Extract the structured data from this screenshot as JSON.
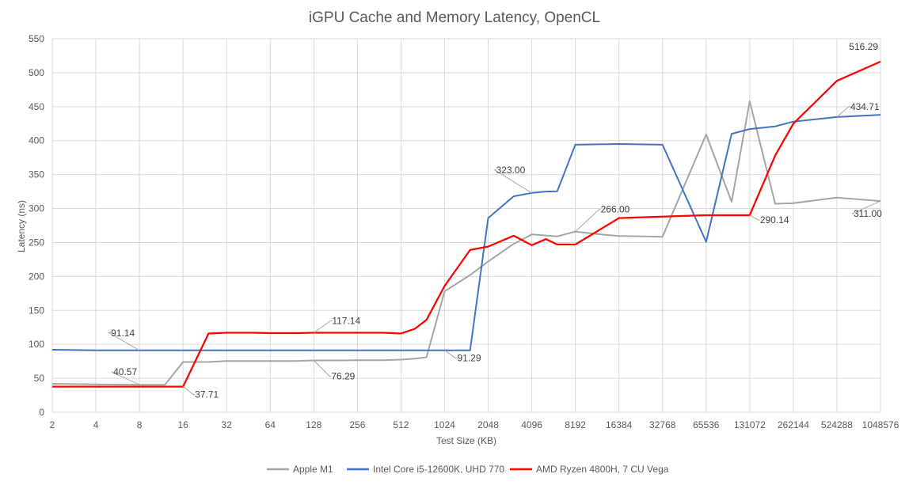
{
  "chart_data": {
    "type": "line",
    "title": "iGPU Cache and Memory Latency, OpenCL",
    "xlabel": "Test Size (KB)",
    "ylabel": "Latency (ns)",
    "ylim": [
      0,
      550
    ],
    "yticks": [
      0,
      50,
      100,
      150,
      200,
      250,
      300,
      350,
      400,
      450,
      500,
      550
    ],
    "x_scale": "log2",
    "xlim": [
      2,
      1048576
    ],
    "xticks": [
      2,
      4,
      8,
      16,
      32,
      64,
      128,
      256,
      512,
      1024,
      2048,
      4096,
      8192,
      16384,
      32768,
      65536,
      131072,
      262144,
      524288,
      1048576
    ],
    "grid": true,
    "legend": "bottom",
    "series": [
      {
        "name": "Apple M1",
        "color": "#a5a5a5",
        "x": [
          2,
          4,
          8,
          12,
          16,
          24,
          32,
          48,
          64,
          96,
          128,
          192,
          256,
          384,
          512,
          640,
          768,
          1024,
          1536,
          2048,
          3072,
          4096,
          6144,
          8192,
          12288,
          16384,
          24576,
          32768,
          65536,
          98304,
          131072,
          196608,
          262144,
          524288,
          1048576
        ],
        "values": [
          42,
          41,
          40.57,
          40.57,
          74,
          74,
          75.5,
          75.5,
          75.5,
          75.5,
          76.29,
          76.29,
          76.5,
          76.5,
          77.5,
          79,
          81,
          178,
          202,
          222,
          248,
          262,
          259,
          266,
          262,
          259.5,
          259,
          258.5,
          409,
          310,
          458,
          307,
          308,
          316,
          311
        ]
      },
      {
        "name": "Intel Core i5-12600K, UHD 770",
        "color": "#4472c4",
        "x": [
          2,
          4,
          8,
          16,
          32,
          64,
          128,
          256,
          512,
          1024,
          1536,
          2048,
          3072,
          4096,
          5120,
          6144,
          8192,
          16384,
          32768,
          65536,
          98304,
          131072,
          196608,
          262144,
          524288,
          1048576
        ],
        "values": [
          92,
          91.14,
          91.14,
          91.14,
          91.14,
          91.14,
          91.14,
          91.14,
          91.14,
          91.29,
          91.29,
          286,
          318,
          323,
          325,
          325.5,
          394,
          395,
          394,
          251,
          410,
          417,
          421,
          428,
          434.71,
          438
        ]
      },
      {
        "name": "AMD Ryzen 4800H, 7 CU Vega",
        "color": "#ff0000",
        "x": [
          2,
          4,
          8,
          16,
          24,
          32,
          48,
          64,
          96,
          128,
          192,
          256,
          384,
          512,
          640,
          768,
          1024,
          1536,
          2048,
          3072,
          4096,
          5120,
          6144,
          8192,
          16384,
          32768,
          65536,
          131072,
          196608,
          262144,
          524288,
          1048576
        ],
        "values": [
          37.71,
          37.71,
          37.71,
          37.71,
          116,
          117.14,
          117.14,
          116.5,
          116.5,
          117.14,
          117.14,
          117.14,
          117.14,
          116,
          123,
          136,
          186,
          239,
          244,
          260,
          246,
          255,
          247,
          247,
          286,
          288,
          290.14,
          290.14,
          378,
          425,
          488,
          516.29
        ]
      }
    ],
    "data_labels": [
      {
        "series": 0,
        "x": 8,
        "y": 40.57,
        "text": "40.57"
      },
      {
        "series": 0,
        "x": 128,
        "y": 76.29,
        "text": "76.29"
      },
      {
        "series": 0,
        "x": 8192,
        "y": 266,
        "text": "266.00"
      },
      {
        "series": 0,
        "x": 1048576,
        "y": 311,
        "text": "311.00"
      },
      {
        "series": 1,
        "x": 8,
        "y": 91.14,
        "text": "91.14"
      },
      {
        "series": 1,
        "x": 1024,
        "y": 91.29,
        "text": "91.29"
      },
      {
        "series": 1,
        "x": 4096,
        "y": 323,
        "text": "323.00"
      },
      {
        "series": 1,
        "x": 524288,
        "y": 434.71,
        "text": "434.71"
      },
      {
        "series": 2,
        "x": 16,
        "y": 37.71,
        "text": "37.71"
      },
      {
        "series": 2,
        "x": 128,
        "y": 117.14,
        "text": "117.14"
      },
      {
        "series": 2,
        "x": 131072,
        "y": 290.14,
        "text": "290.14"
      },
      {
        "series": 2,
        "x": 1048576,
        "y": 516.29,
        "text": "516.29"
      }
    ]
  }
}
